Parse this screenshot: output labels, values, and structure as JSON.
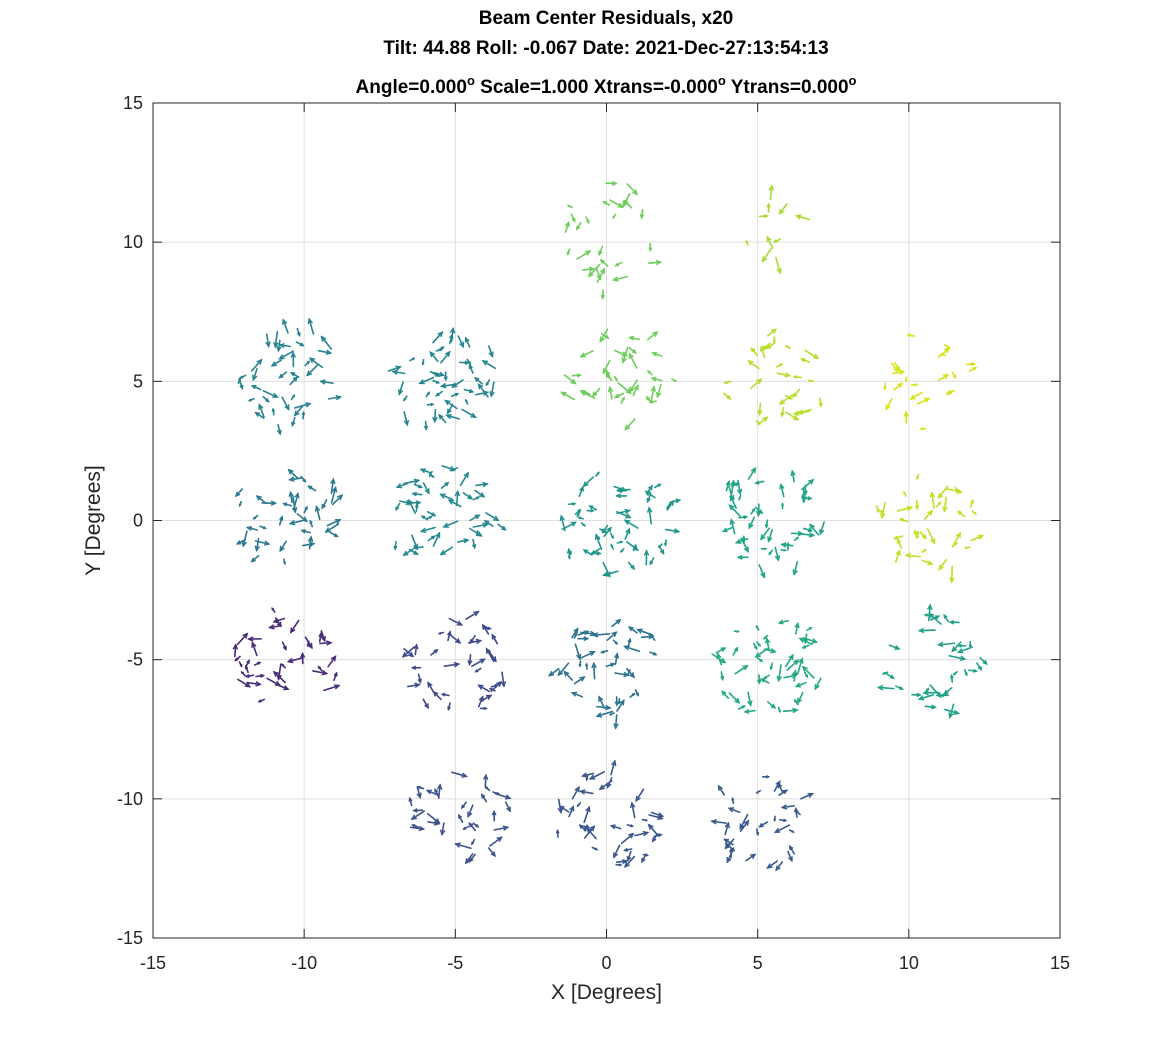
{
  "chart_data": {
    "type": "quiver",
    "title_line_1": "Beam Center Residuals, x20",
    "title_line_2": "Tilt: 44.88  Roll: -0.067  Date: 2021-Dec-27:13:54:13",
    "title_line_3": {
      "angle": "Angle=0.000",
      "scale": " Scale=1.000 Xtrans=-0.000",
      "ytrans": " Ytrans=0.000",
      "degree_mark": "o"
    },
    "xlabel": "X [Degrees]",
    "ylabel": "Y [Degrees]",
    "xlim": [
      -15,
      15
    ],
    "ylim": [
      -15,
      15
    ],
    "xticks": [
      -15,
      -10,
      -5,
      0,
      5,
      10,
      15
    ],
    "yticks": [
      -15,
      -10,
      -5,
      0,
      5,
      10,
      15
    ],
    "xtick_labels": [
      "-15",
      "-10",
      "-5",
      "0",
      "5",
      "10",
      "15"
    ],
    "ytick_labels": [
      "-15",
      "-10",
      "-5",
      "0",
      "5",
      "10",
      "15"
    ],
    "grid": true,
    "colormap": "viridis",
    "arrow_scale": 20,
    "clusters": [
      {
        "cx": 0.3,
        "cy": 10.2,
        "w": 3.4,
        "h": 4.4,
        "n": 26,
        "color": "#6ccd5a"
      },
      {
        "cx": 6.0,
        "cy": 10.5,
        "w": 3.4,
        "h": 2.4,
        "n": 10,
        "color": "#a8db34"
      },
      {
        "cx": -10.5,
        "cy": 5.2,
        "w": 3.6,
        "h": 3.6,
        "n": 40,
        "color": "#26828e"
      },
      {
        "cx": -5.4,
        "cy": 5.2,
        "w": 3.8,
        "h": 3.6,
        "n": 46,
        "color": "#25858e"
      },
      {
        "cx": 0.4,
        "cy": 5.2,
        "w": 3.6,
        "h": 3.6,
        "n": 34,
        "color": "#6ccd5a"
      },
      {
        "cx": 5.6,
        "cy": 5.0,
        "w": 3.6,
        "h": 3.6,
        "n": 28,
        "color": "#b5de2b"
      },
      {
        "cx": 10.6,
        "cy": 5.0,
        "w": 3.0,
        "h": 3.6,
        "n": 22,
        "color": "#d8e219"
      },
      {
        "cx": -10.6,
        "cy": 0.2,
        "w": 3.6,
        "h": 3.6,
        "n": 38,
        "color": "#2a788e"
      },
      {
        "cx": -5.4,
        "cy": 0.2,
        "w": 3.8,
        "h": 3.6,
        "n": 46,
        "color": "#23898e"
      },
      {
        "cx": 0.2,
        "cy": 0.0,
        "w": 4.2,
        "h": 3.8,
        "n": 52,
        "color": "#1f958b"
      },
      {
        "cx": 5.4,
        "cy": 0.0,
        "w": 4.0,
        "h": 3.6,
        "n": 46,
        "color": "#20a386"
      },
      {
        "cx": 10.6,
        "cy": -0.1,
        "w": 3.6,
        "h": 3.6,
        "n": 34,
        "color": "#c2df23"
      },
      {
        "cx": -10.6,
        "cy": -5.0,
        "w": 3.6,
        "h": 3.6,
        "n": 38,
        "color": "#482878"
      },
      {
        "cx": -5.0,
        "cy": -5.2,
        "w": 3.6,
        "h": 3.6,
        "n": 36,
        "color": "#3e4a89"
      },
      {
        "cx": 0.2,
        "cy": -5.2,
        "w": 3.6,
        "h": 3.6,
        "n": 42,
        "color": "#2c728e"
      },
      {
        "cx": 5.3,
        "cy": -5.2,
        "w": 3.8,
        "h": 3.6,
        "n": 46,
        "color": "#22a884"
      },
      {
        "cx": 10.8,
        "cy": -5.2,
        "w": 3.4,
        "h": 3.6,
        "n": 34,
        "color": "#1fa188"
      },
      {
        "cx": -5.0,
        "cy": -10.5,
        "w": 3.6,
        "h": 3.4,
        "n": 34,
        "color": "#3b528b"
      },
      {
        "cx": 0.0,
        "cy": -10.8,
        "w": 3.6,
        "h": 3.6,
        "n": 40,
        "color": "#39568c"
      },
      {
        "cx": 5.2,
        "cy": -10.8,
        "w": 3.4,
        "h": 3.4,
        "n": 32,
        "color": "#38598c"
      }
    ]
  }
}
